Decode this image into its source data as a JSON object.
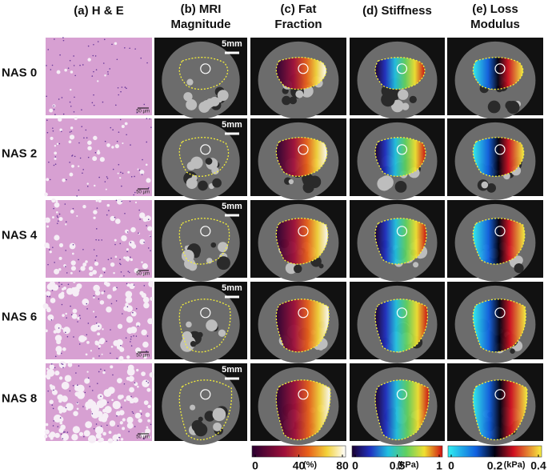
{
  "columns": [
    {
      "lines": [
        "(a) H & E"
      ]
    },
    {
      "lines": [
        "(b) MRI",
        "Magnitude"
      ]
    },
    {
      "lines": [
        "(c) Fat",
        "Fraction"
      ]
    },
    {
      "lines": [
        "(d) Stiffness"
      ]
    },
    {
      "lines": [
        "(e) Loss",
        "Modulus"
      ]
    }
  ],
  "rows": [
    "NAS 0",
    "NAS 2",
    "NAS 4",
    "NAS 6",
    "NAS 8"
  ],
  "scale_bar_mri": "5mm",
  "scale_bar_he": "50 µm",
  "colorbars": [
    {
      "ticks": [
        0,
        40,
        80
      ],
      "unit": "(%)"
    },
    {
      "ticks": [
        0,
        0.5,
        1
      ],
      "unit": "(kPa)"
    },
    {
      "ticks": [
        0,
        0.2,
        0.4
      ],
      "unit": "(kPa)"
    }
  ]
}
